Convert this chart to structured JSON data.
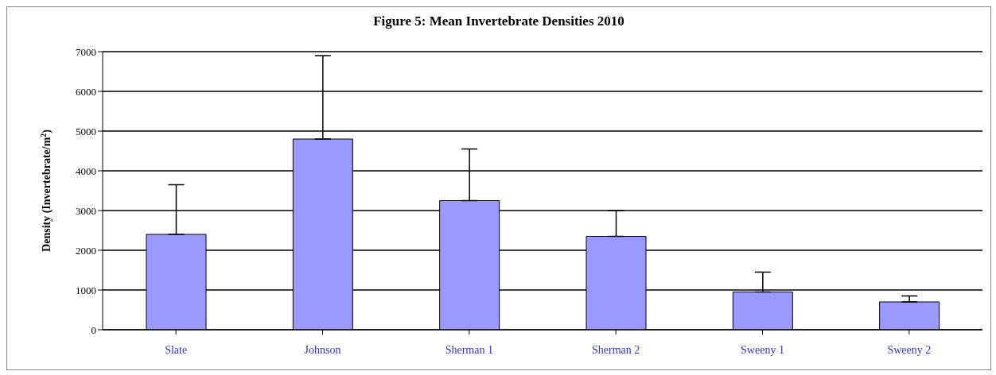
{
  "chart_data": {
    "type": "bar",
    "title": "Figure 5: Mean Invertebrate Densities 2010",
    "ylabel": "Density (Invertebrate/m$^{2}$)",
    "categories": [
      "Slate",
      "Johnson",
      "Sherman 1",
      "Sherman 2",
      "Sweeny 1",
      "Sweeny 2"
    ],
    "values": [
      2400,
      4800,
      3250,
      2350,
      950,
      700
    ],
    "errors": [
      [
        2400,
        3650
      ],
      [
        4800,
        6900
      ],
      [
        3250,
        4550
      ],
      [
        2350,
        3000
      ],
      [
        950,
        1450
      ],
      [
        700,
        850
      ]
    ],
    "color": "#9999ff",
    "ylim": [
      0,
      7000
    ],
    "yticks": [
      0,
      1000,
      2000,
      3000,
      4000,
      5000,
      6000,
      7000
    ],
    "grid": "y",
    "legend": false
  }
}
